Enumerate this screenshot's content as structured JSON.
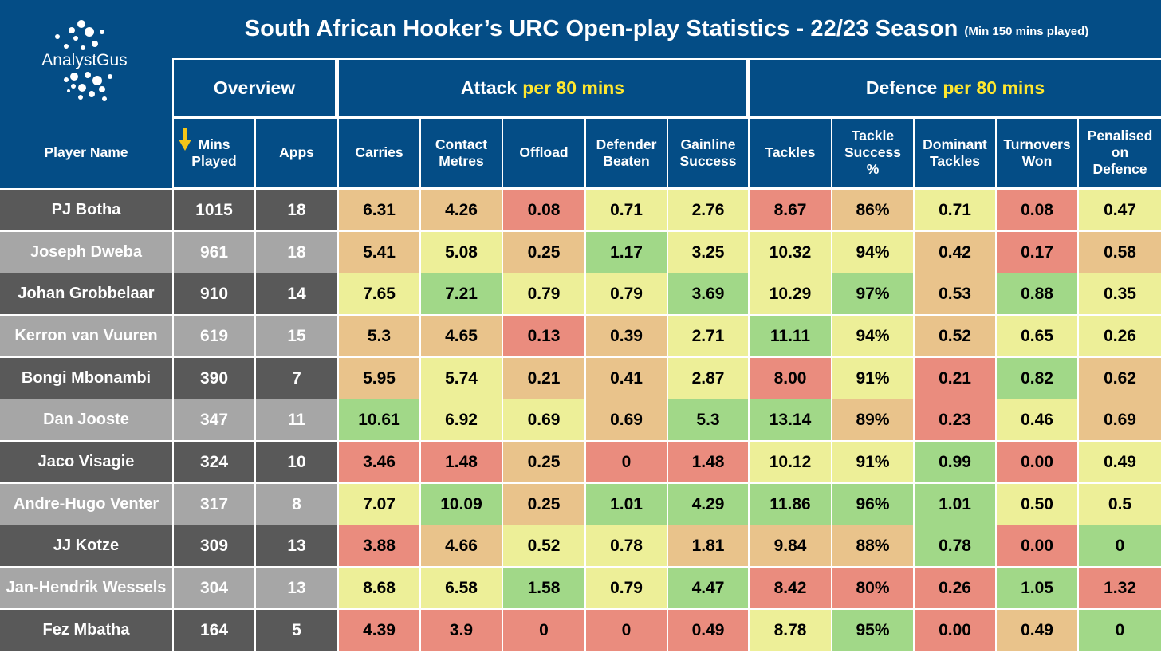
{
  "logo": {
    "text": "AnalystGus"
  },
  "title": {
    "main": "South African Hooker’s URC Open-play Statistics - 22/23 Season",
    "note": "(Min 150 mins played)"
  },
  "groups": {
    "overview": "Overview",
    "attack": {
      "label": "Attack",
      "highlight": "per 80 mins"
    },
    "defence": {
      "label": "Defence",
      "highlight": "per 80 mins"
    }
  },
  "colors": {
    "navy": "#044d86",
    "highlight_yellow": "#ffe72f",
    "sort_arrow": "#f5c518",
    "row_dark": "#595959",
    "row_light": "#a6a6a6",
    "red": "#ea8c7e",
    "orange": "#e9c38b",
    "yellow": "#edef98",
    "green": "#a1d888"
  },
  "chart_data": {
    "type": "table",
    "title": "South African Hooker’s URC Open-play Statistics - 22/23 Season",
    "subtitle": "(Min 150 mins played)",
    "sort_indicator": "down-arrow on Mins Played",
    "columns": [
      {
        "key": "name",
        "label": "Player Name"
      },
      {
        "key": "mins",
        "label": "Mins\nPlayed"
      },
      {
        "key": "apps",
        "label": "Apps"
      },
      {
        "key": "carries",
        "label": "Carries"
      },
      {
        "key": "contact_metres",
        "label": "Contact\nMetres"
      },
      {
        "key": "offload",
        "label": "Offload"
      },
      {
        "key": "defender_beaten",
        "label": "Defender\nBeaten"
      },
      {
        "key": "gainline_success",
        "label": "Gainline\nSuccess"
      },
      {
        "key": "tackles",
        "label": "Tackles"
      },
      {
        "key": "tackle_success",
        "label": "Tackle\nSuccess\n%"
      },
      {
        "key": "dominant_tackles",
        "label": "Dominant\nTackles"
      },
      {
        "key": "turnovers_won",
        "label": "Turnovers\nWon"
      },
      {
        "key": "penalised_on_defence",
        "label": "Penalised\non\nDefence"
      }
    ],
    "rows": [
      {
        "name": "PJ Botha",
        "mins": "1015",
        "apps": "18",
        "cells": [
          [
            "6.31",
            "orange"
          ],
          [
            "4.26",
            "orange"
          ],
          [
            "0.08",
            "red"
          ],
          [
            "0.71",
            "yellow"
          ],
          [
            "2.76",
            "yellow"
          ],
          [
            "8.67",
            "red"
          ],
          [
            "86%",
            "orange"
          ],
          [
            "0.71",
            "yellow"
          ],
          [
            "0.08",
            "red"
          ],
          [
            "0.47",
            "yellow"
          ]
        ]
      },
      {
        "name": "Joseph Dweba",
        "mins": "961",
        "apps": "18",
        "cells": [
          [
            "5.41",
            "orange"
          ],
          [
            "5.08",
            "yellow"
          ],
          [
            "0.25",
            "orange"
          ],
          [
            "1.17",
            "green"
          ],
          [
            "3.25",
            "yellow"
          ],
          [
            "10.32",
            "yellow"
          ],
          [
            "94%",
            "yellow"
          ],
          [
            "0.42",
            "orange"
          ],
          [
            "0.17",
            "red"
          ],
          [
            "0.58",
            "orange"
          ]
        ]
      },
      {
        "name": "Johan Grobbelaar",
        "mins": "910",
        "apps": "14",
        "cells": [
          [
            "7.65",
            "yellow"
          ],
          [
            "7.21",
            "green"
          ],
          [
            "0.79",
            "yellow"
          ],
          [
            "0.79",
            "yellow"
          ],
          [
            "3.69",
            "green"
          ],
          [
            "10.29",
            "yellow"
          ],
          [
            "97%",
            "green"
          ],
          [
            "0.53",
            "orange"
          ],
          [
            "0.88",
            "green"
          ],
          [
            "0.35",
            "yellow"
          ]
        ]
      },
      {
        "name": "Kerron van Vuuren",
        "mins": "619",
        "apps": "15",
        "cells": [
          [
            "5.3",
            "orange"
          ],
          [
            "4.65",
            "orange"
          ],
          [
            "0.13",
            "red"
          ],
          [
            "0.39",
            "orange"
          ],
          [
            "2.71",
            "yellow"
          ],
          [
            "11.11",
            "green"
          ],
          [
            "94%",
            "yellow"
          ],
          [
            "0.52",
            "orange"
          ],
          [
            "0.65",
            "yellow"
          ],
          [
            "0.26",
            "yellow"
          ]
        ]
      },
      {
        "name": "Bongi Mbonambi",
        "mins": "390",
        "apps": "7",
        "cells": [
          [
            "5.95",
            "orange"
          ],
          [
            "5.74",
            "yellow"
          ],
          [
            "0.21",
            "orange"
          ],
          [
            "0.41",
            "orange"
          ],
          [
            "2.87",
            "yellow"
          ],
          [
            "8.00",
            "red"
          ],
          [
            "91%",
            "yellow"
          ],
          [
            "0.21",
            "red"
          ],
          [
            "0.82",
            "green"
          ],
          [
            "0.62",
            "orange"
          ]
        ]
      },
      {
        "name": "Dan Jooste",
        "mins": "347",
        "apps": "11",
        "cells": [
          [
            "10.61",
            "green"
          ],
          [
            "6.92",
            "yellow"
          ],
          [
            "0.69",
            "yellow"
          ],
          [
            "0.69",
            "orange"
          ],
          [
            "5.3",
            "green"
          ],
          [
            "13.14",
            "green"
          ],
          [
            "89%",
            "orange"
          ],
          [
            "0.23",
            "red"
          ],
          [
            "0.46",
            "yellow"
          ],
          [
            "0.69",
            "orange"
          ]
        ]
      },
      {
        "name": "Jaco Visagie",
        "mins": "324",
        "apps": "10",
        "cells": [
          [
            "3.46",
            "red"
          ],
          [
            "1.48",
            "red"
          ],
          [
            "0.25",
            "orange"
          ],
          [
            "0",
            "red"
          ],
          [
            "1.48",
            "red"
          ],
          [
            "10.12",
            "yellow"
          ],
          [
            "91%",
            "yellow"
          ],
          [
            "0.99",
            "green"
          ],
          [
            "0.00",
            "red"
          ],
          [
            "0.49",
            "yellow"
          ]
        ]
      },
      {
        "name": "Andre-Hugo Venter",
        "mins": "317",
        "apps": "8",
        "cells": [
          [
            "7.07",
            "yellow"
          ],
          [
            "10.09",
            "green"
          ],
          [
            "0.25",
            "orange"
          ],
          [
            "1.01",
            "green"
          ],
          [
            "4.29",
            "green"
          ],
          [
            "11.86",
            "green"
          ],
          [
            "96%",
            "green"
          ],
          [
            "1.01",
            "green"
          ],
          [
            "0.50",
            "yellow"
          ],
          [
            "0.5",
            "yellow"
          ]
        ]
      },
      {
        "name": "JJ Kotze",
        "mins": "309",
        "apps": "13",
        "cells": [
          [
            "3.88",
            "red"
          ],
          [
            "4.66",
            "orange"
          ],
          [
            "0.52",
            "yellow"
          ],
          [
            "0.78",
            "yellow"
          ],
          [
            "1.81",
            "orange"
          ],
          [
            "9.84",
            "orange"
          ],
          [
            "88%",
            "orange"
          ],
          [
            "0.78",
            "green"
          ],
          [
            "0.00",
            "red"
          ],
          [
            "0",
            "green"
          ]
        ]
      },
      {
        "name": "Jan-Hendrik Wessels",
        "mins": "304",
        "apps": "13",
        "cells": [
          [
            "8.68",
            "yellow"
          ],
          [
            "6.58",
            "yellow"
          ],
          [
            "1.58",
            "green"
          ],
          [
            "0.79",
            "yellow"
          ],
          [
            "4.47",
            "green"
          ],
          [
            "8.42",
            "red"
          ],
          [
            "80%",
            "red"
          ],
          [
            "0.26",
            "red"
          ],
          [
            "1.05",
            "green"
          ],
          [
            "1.32",
            "red"
          ]
        ]
      },
      {
        "name": "Fez Mbatha",
        "mins": "164",
        "apps": "5",
        "cells": [
          [
            "4.39",
            "red"
          ],
          [
            "3.9",
            "red"
          ],
          [
            "0",
            "red"
          ],
          [
            "0",
            "red"
          ],
          [
            "0.49",
            "red"
          ],
          [
            "8.78",
            "yellow"
          ],
          [
            "95%",
            "green"
          ],
          [
            "0.00",
            "red"
          ],
          [
            "0.49",
            "orange"
          ],
          [
            "0",
            "green"
          ]
        ]
      }
    ]
  }
}
